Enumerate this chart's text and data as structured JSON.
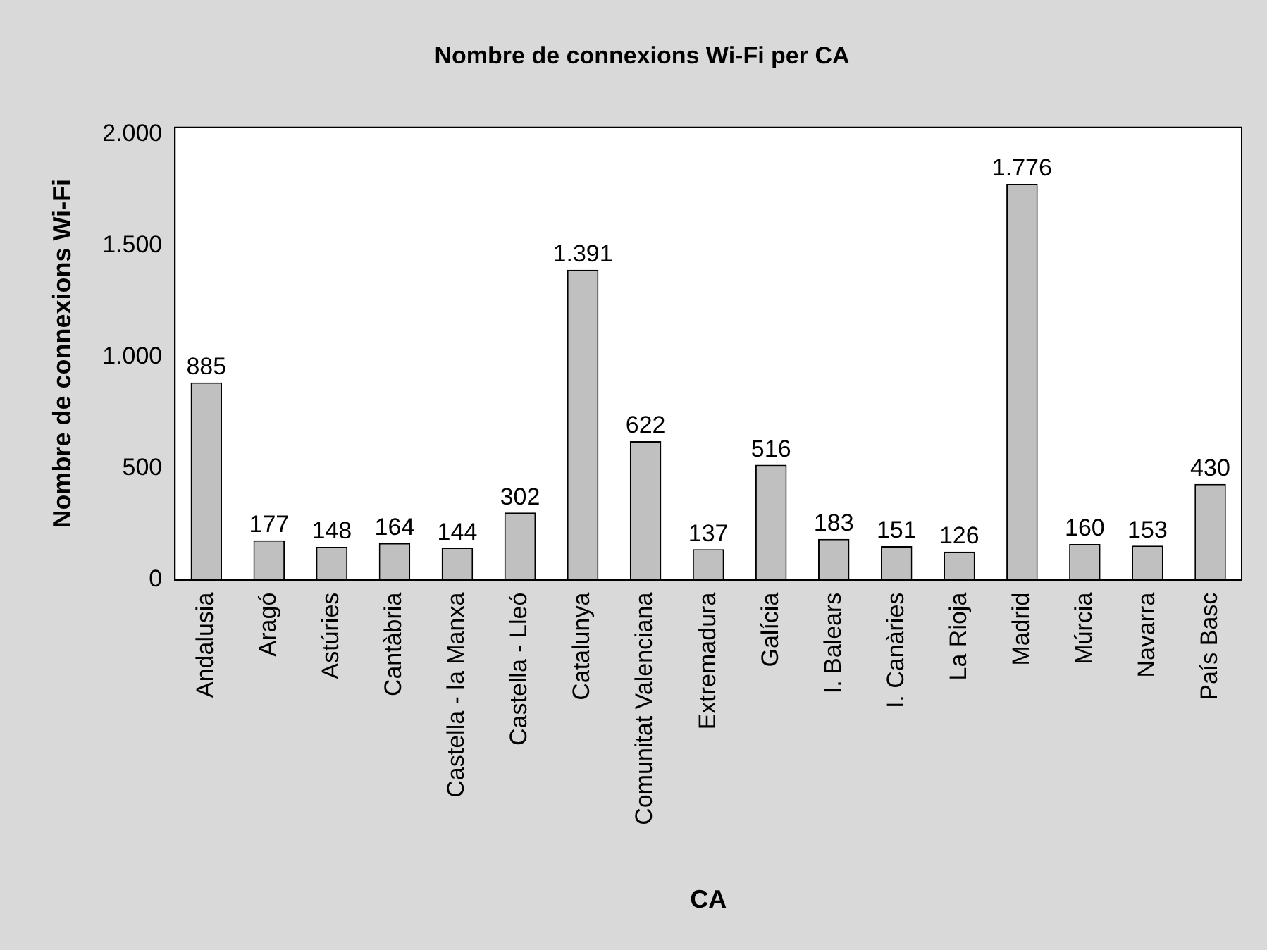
{
  "chart_data": {
    "type": "bar",
    "title": "Nombre de connexions Wi-Fi per CA",
    "xlabel": "CA",
    "ylabel": "Nombre de connexions Wi-Fi",
    "categories": [
      "Andalusia",
      "Aragó",
      "Astúries",
      "Cantàbria",
      "Castella - la Manxa",
      "Castella - Lleó",
      "Catalunya",
      "Comunitat Valenciana",
      "Extremadura",
      "Galícia",
      "I. Balears",
      "I. Canàries",
      "La Rioja",
      "Madrid",
      "Múrcia",
      "Navarra",
      "País Basc"
    ],
    "values": [
      885,
      177,
      148,
      164,
      144,
      302,
      1391,
      622,
      137,
      516,
      183,
      151,
      126,
      1776,
      160,
      153,
      430
    ],
    "value_labels": [
      "885",
      "177",
      "148",
      "164",
      "144",
      "302",
      "1.391",
      "622",
      "137",
      "516",
      "183",
      "151",
      "126",
      "1.776",
      "160",
      "153",
      "430"
    ],
    "color": "#c0c0c0",
    "ylim": [
      0,
      2030
    ],
    "yticks": [
      0,
      {
        "value": 500,
        "label": "500"
      },
      {
        "value": 1000,
        "label": "1.000"
      },
      {
        "value": 1500,
        "label": "1.500"
      },
      {
        "value": 2000,
        "label": "2.000"
      }
    ],
    "grid": false,
    "legend": false
  }
}
